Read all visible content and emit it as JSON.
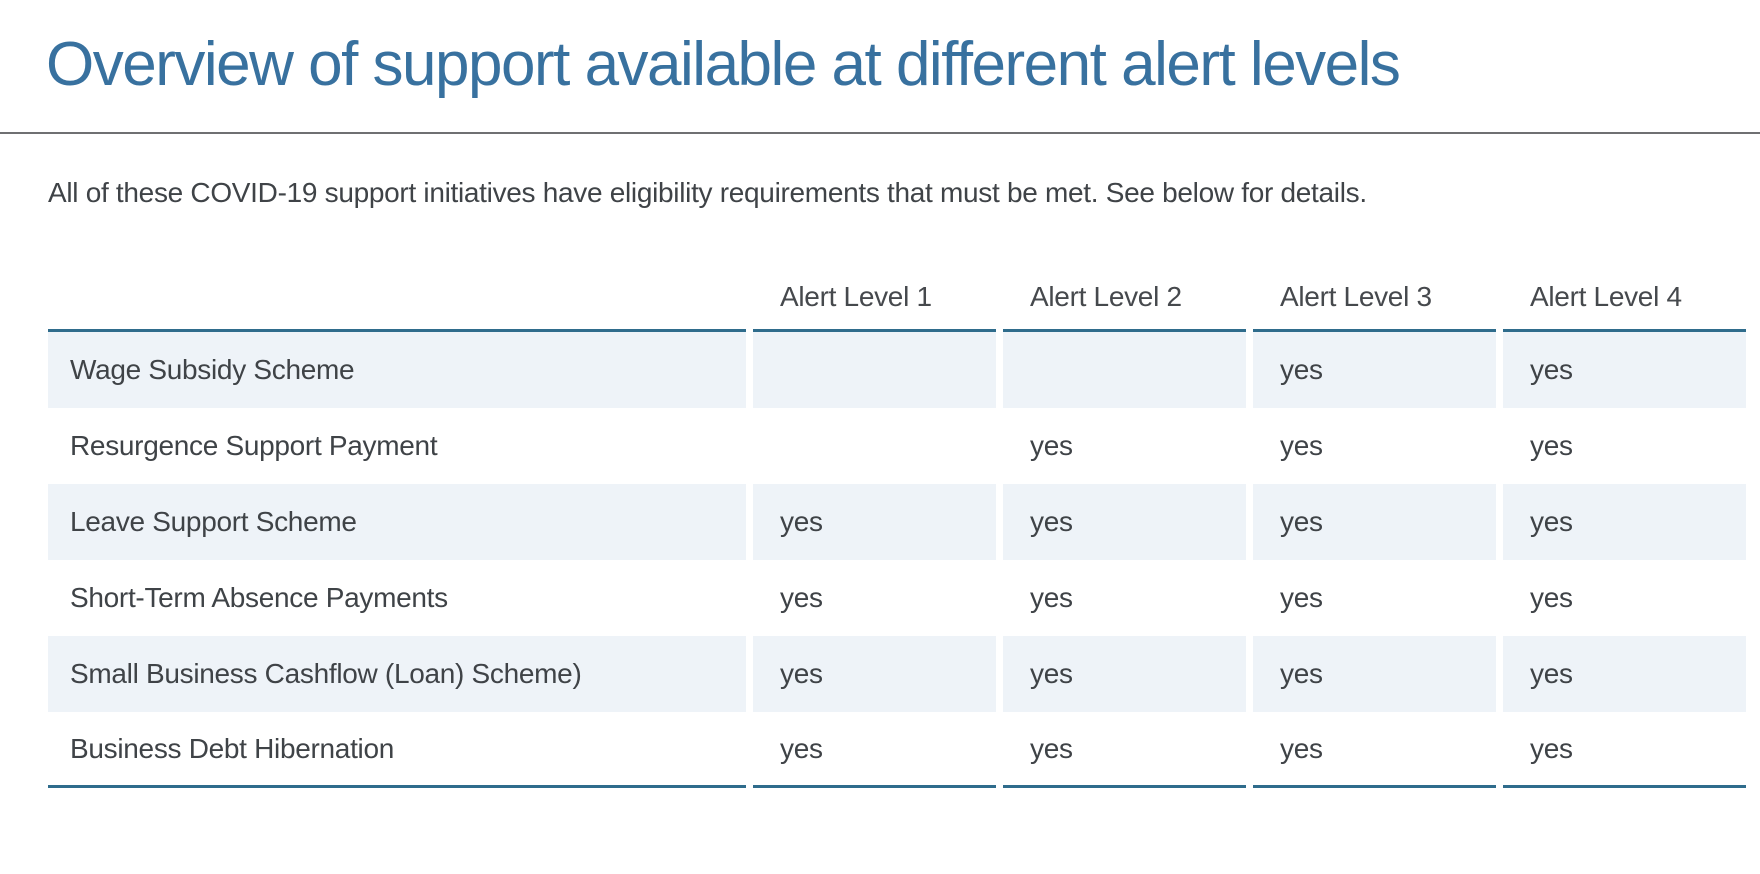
{
  "page": {
    "title": "Overview of support available at different alert levels",
    "intro": "All of these COVID-19 support initiatives have eligibility requirements that must be met. See below for details."
  },
  "table": {
    "column_headers": [
      "Alert Level 1",
      "Alert Level 2",
      "Alert Level 3",
      "Alert Level 4"
    ],
    "rows": [
      {
        "label": "Wage Subsidy Scheme",
        "values": [
          "",
          "",
          "yes",
          "yes"
        ]
      },
      {
        "label": "Resurgence Support Payment",
        "values": [
          "",
          "yes",
          "yes",
          "yes"
        ]
      },
      {
        "label": "Leave Support Scheme",
        "values": [
          "yes",
          "yes",
          "yes",
          "yes"
        ]
      },
      {
        "label": "Short-Term Absence Payments",
        "values": [
          "yes",
          "yes",
          "yes",
          "yes"
        ]
      },
      {
        "label": "Small Business Cashflow (Loan) Scheme)",
        "values": [
          "yes",
          "yes",
          "yes",
          "yes"
        ]
      },
      {
        "label": "Business Debt Hibernation",
        "values": [
          "yes",
          "yes",
          "yes",
          "yes"
        ]
      }
    ]
  },
  "colors": {
    "accent_blue": "#38719f",
    "table_border_blue": "#2f6c8c",
    "row_stripe": "#eef3f8",
    "text": "#3f4347",
    "divider_gray": "#6f7072"
  }
}
